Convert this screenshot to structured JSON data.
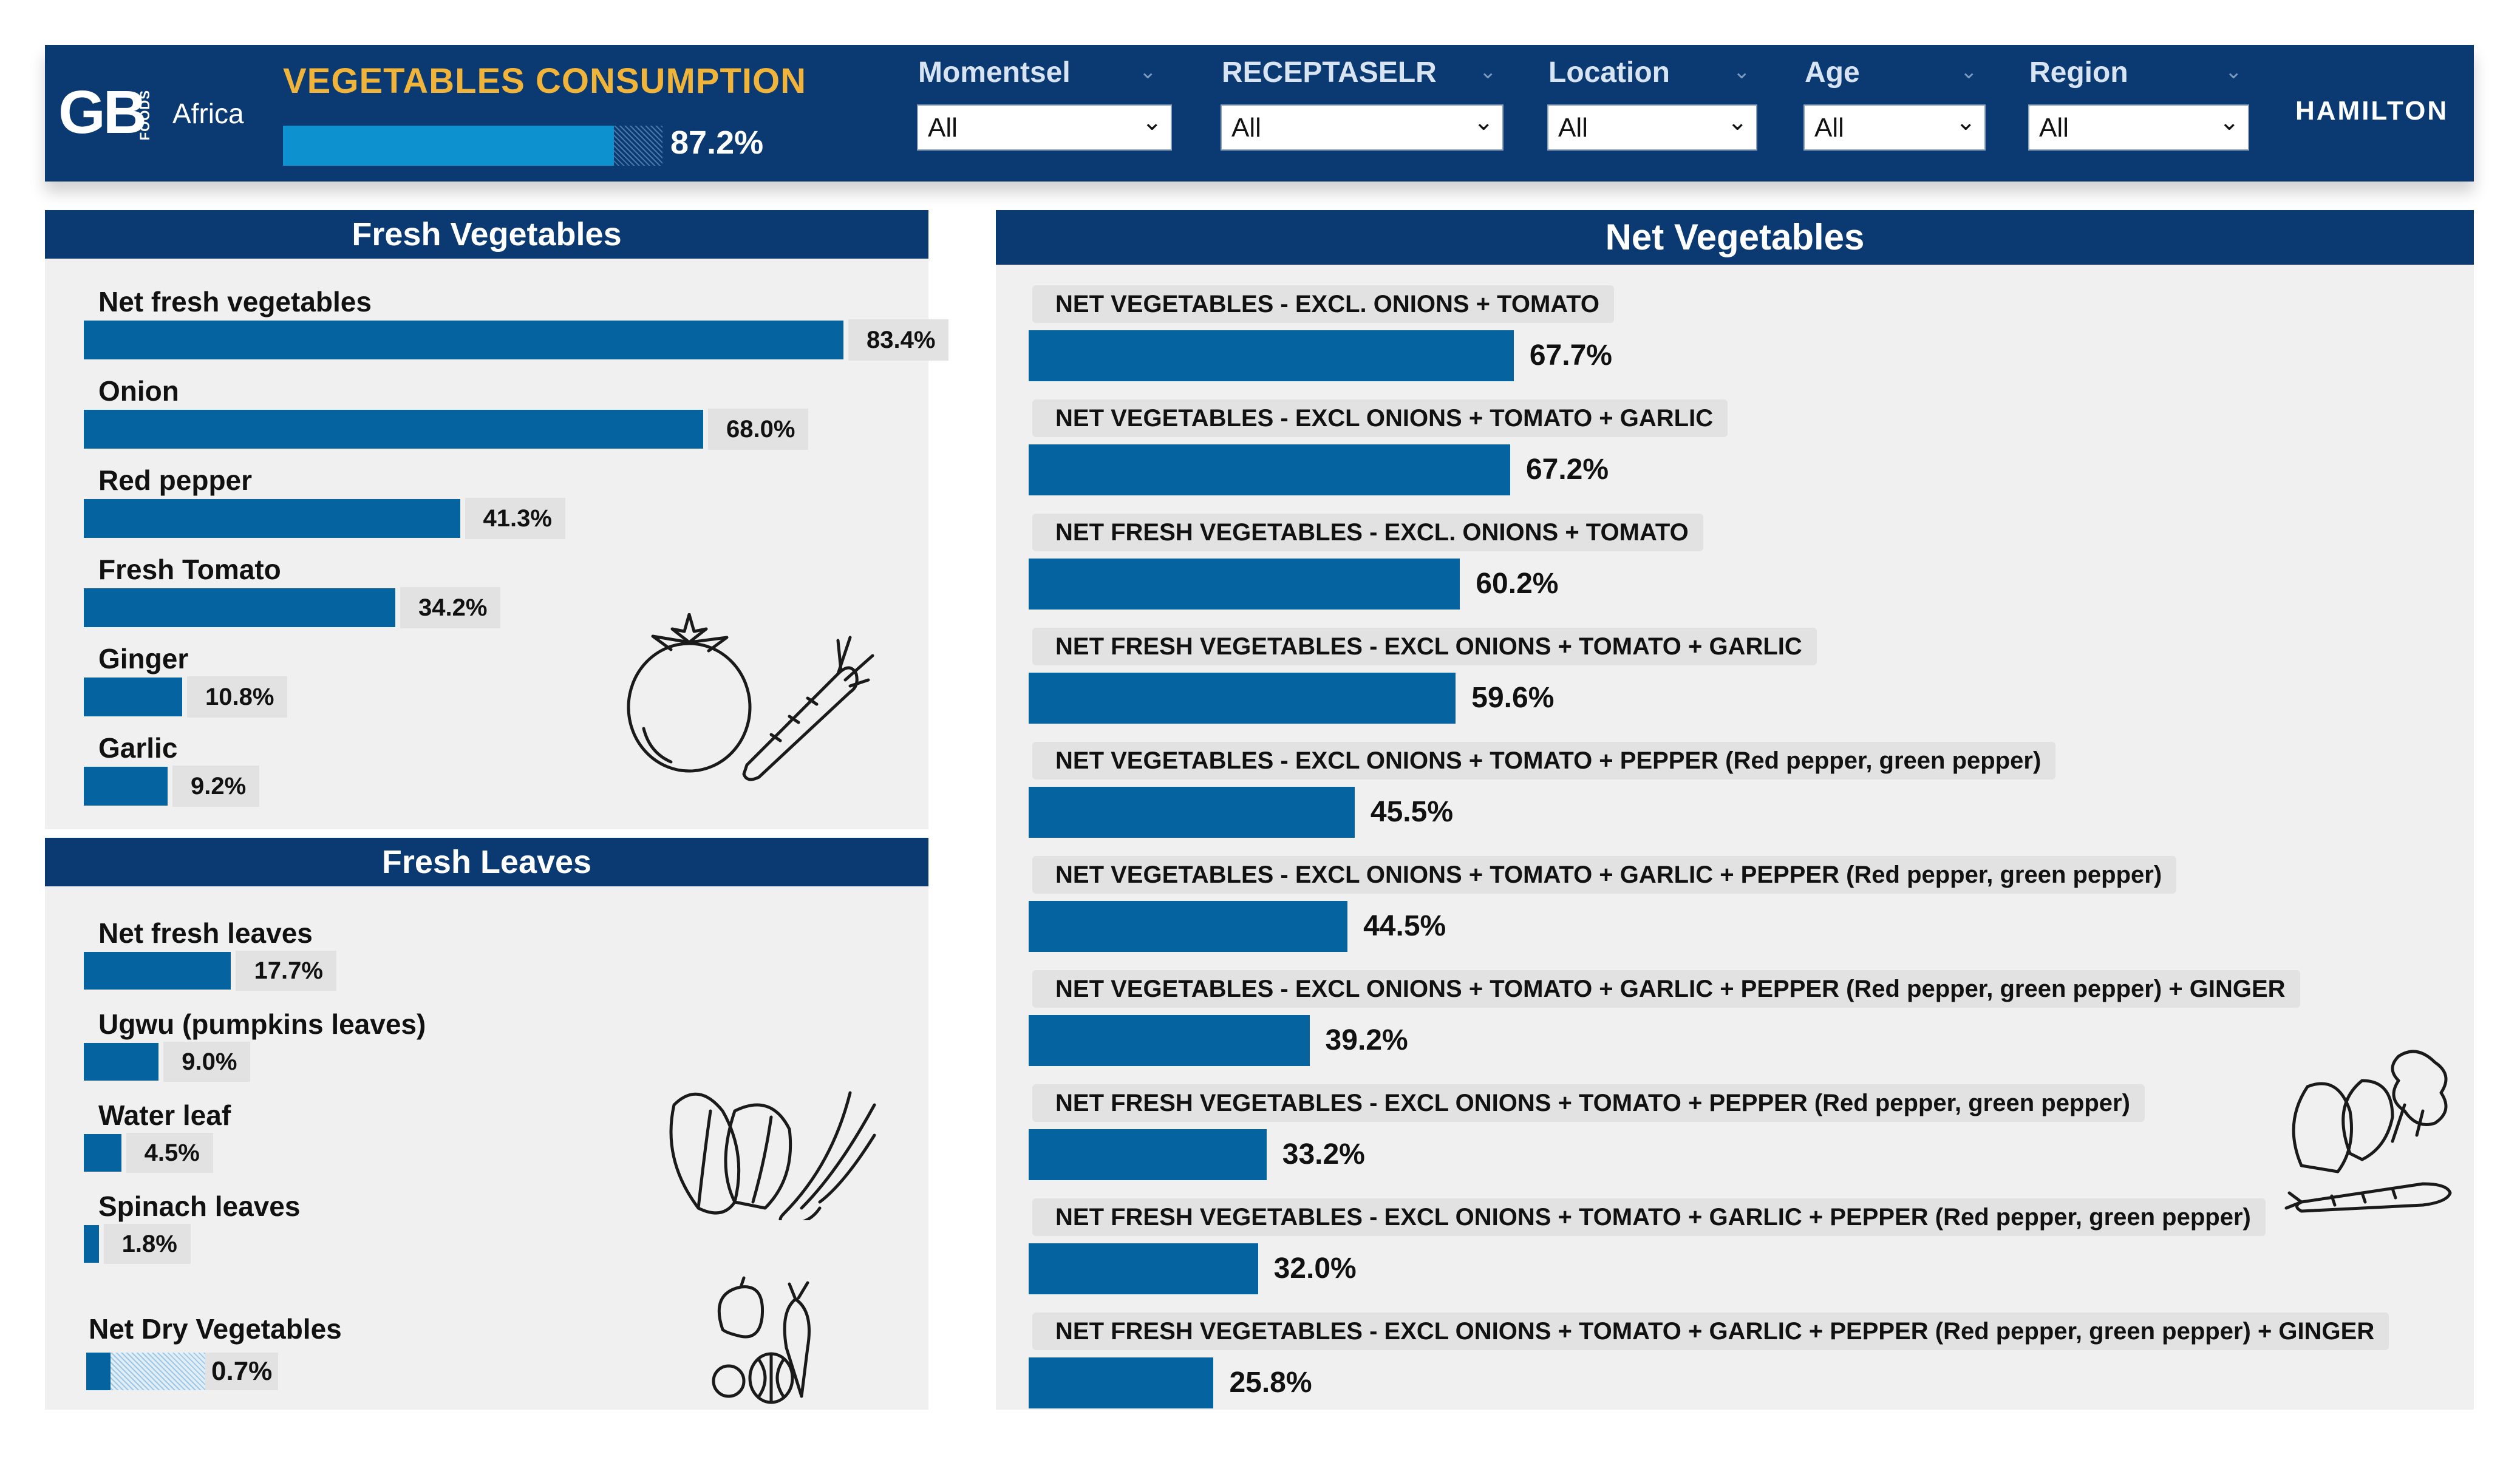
{
  "header": {
    "logo_gb": "GB",
    "logo_foods": "FOODS",
    "logo_africa": "Africa",
    "kpi_title": "VEGETABLES CONSUMPTION",
    "kpi_value": "87.2%",
    "kpi_fraction": 0.872,
    "user_name": "HAMILTON"
  },
  "filters": [
    {
      "label": "Momentsel",
      "value": "All"
    },
    {
      "label": "RECEPTASELR",
      "value": "All"
    },
    {
      "label": "Location",
      "value": "All"
    },
    {
      "label": "Age",
      "value": "All"
    },
    {
      "label": "Region",
      "value": "All"
    }
  ],
  "fresh_vegetables": {
    "title": "Fresh Vegetables",
    "items": [
      {
        "label": "Net fresh vegetables",
        "value": "83.4%",
        "pct": 83.4
      },
      {
        "label": "Onion",
        "value": "68.0%",
        "pct": 68.0
      },
      {
        "label": "Red pepper",
        "value": "41.3%",
        "pct": 41.3
      },
      {
        "label": "Fresh Tomato",
        "value": "34.2%",
        "pct": 34.2
      },
      {
        "label": "Ginger",
        "value": "10.8%",
        "pct": 10.8
      },
      {
        "label": "Garlic",
        "value": "9.2%",
        "pct": 9.2
      }
    ]
  },
  "fresh_leaves": {
    "title": "Fresh Leaves",
    "items": [
      {
        "label": "Net fresh leaves",
        "value": "17.7%",
        "pct": 17.7
      },
      {
        "label": "Ugwu (pumpkins leaves)",
        "value": "9.0%",
        "pct": 9.0
      },
      {
        "label": "Water leaf",
        "value": "4.5%",
        "pct": 4.5
      },
      {
        "label": "Spinach leaves",
        "value": "1.8%",
        "pct": 1.8
      }
    ]
  },
  "net_dry": {
    "label": "Net Dry Vegetables",
    "value": "0.7%",
    "pct": 0.7
  },
  "net_vegetables": {
    "title": "Net Vegetables",
    "items": [
      {
        "label": "NET VEGETABLES - EXCL. ONIONS + TOMATO",
        "value": "67.7%",
        "pct": 67.7
      },
      {
        "label": "NET VEGETABLES - EXCL ONIONS + TOMATO + GARLIC",
        "value": "67.2%",
        "pct": 67.2
      },
      {
        "label": "NET FRESH VEGETABLES - EXCL. ONIONS + TOMATO",
        "value": "60.2%",
        "pct": 60.2
      },
      {
        "label": "NET FRESH VEGETABLES - EXCL ONIONS + TOMATO + GARLIC",
        "value": "59.6%",
        "pct": 59.6
      },
      {
        "label": "NET VEGETABLES - EXCL ONIONS + TOMATO + PEPPER (Red pepper, green pepper)",
        "value": "45.5%",
        "pct": 45.5
      },
      {
        "label": "NET VEGETABLES - EXCL ONIONS + TOMATO + GARLIC + PEPPER (Red pepper, green pepper)",
        "value": "44.5%",
        "pct": 44.5
      },
      {
        "label": "NET VEGETABLES - EXCL ONIONS + TOMATO + GARLIC + PEPPER (Red pepper, green pepper) + GINGER",
        "value": "39.2%",
        "pct": 39.2
      },
      {
        "label": "NET FRESH VEGETABLES - EXCL ONIONS + TOMATO + PEPPER (Red pepper, green pepper)",
        "value": "33.2%",
        "pct": 33.2
      },
      {
        "label": "NET FRESH VEGETABLES - EXCL ONIONS + TOMATO + GARLIC + PEPPER (Red pepper, green pepper)",
        "value": "32.0%",
        "pct": 32.0
      },
      {
        "label": "NET FRESH VEGETABLES - EXCL ONIONS + TOMATO + GARLIC + PEPPER (Red pepper, green pepper) + GINGER",
        "value": "25.8%",
        "pct": 25.8
      }
    ]
  },
  "colors": {
    "header_bg": "#0b3a73",
    "bar": "#0563a0",
    "kpi_fill": "#0d92cf",
    "kpi_title": "#f0b43a"
  }
}
